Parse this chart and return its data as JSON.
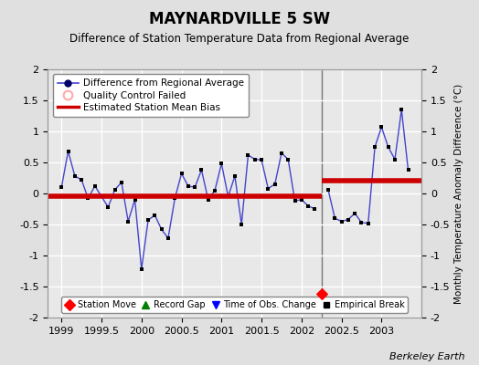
{
  "title": "MAYNARDVILLE 5 SW",
  "subtitle": "Difference of Station Temperature Data from Regional Average",
  "ylabel": "Monthly Temperature Anomaly Difference (°C)",
  "credit": "Berkeley Earth",
  "xlim": [
    1998.83,
    2003.5
  ],
  "ylim": [
    -2.0,
    2.0
  ],
  "xticks": [
    1999,
    1999.5,
    2000,
    2000.5,
    2001,
    2001.5,
    2002,
    2002.5,
    2003
  ],
  "yticks": [
    -2,
    -1.5,
    -1,
    -0.5,
    0,
    0.5,
    1,
    1.5,
    2
  ],
  "background_color": "#e0e0e0",
  "plot_bg_color": "#e8e8e8",
  "grid_color": "#ffffff",
  "break_line_x": 2002.25,
  "station_move_x": 2002.25,
  "station_move_y": -1.62,
  "bias_before_y": -0.04,
  "bias_before_x0": 1998.83,
  "bias_before_x1": 2002.25,
  "bias_after_y": 0.2,
  "bias_after_x0": 2002.25,
  "bias_after_x1": 2003.5,
  "data_x": [
    1999.0,
    1999.083,
    1999.167,
    1999.25,
    1999.333,
    1999.417,
    1999.5,
    1999.583,
    1999.667,
    1999.75,
    1999.833,
    1999.917,
    2000.0,
    2000.083,
    2000.167,
    2000.25,
    2000.333,
    2000.417,
    2000.5,
    2000.583,
    2000.667,
    2000.75,
    2000.833,
    2000.917,
    2001.0,
    2001.083,
    2001.167,
    2001.25,
    2001.333,
    2001.417,
    2001.5,
    2001.583,
    2001.667,
    2001.75,
    2001.833,
    2001.917,
    2002.0,
    2002.083,
    2002.167,
    2002.333,
    2002.417,
    2002.5,
    2002.583,
    2002.667,
    2002.75,
    2002.833,
    2002.917,
    2003.0,
    2003.083,
    2003.167,
    2003.25,
    2003.333
  ],
  "data_y": [
    0.1,
    0.68,
    0.28,
    0.22,
    -0.08,
    0.12,
    -0.05,
    -0.22,
    0.06,
    0.18,
    -0.45,
    -0.1,
    -1.22,
    -0.43,
    -0.35,
    -0.58,
    -0.72,
    -0.08,
    0.32,
    0.12,
    0.1,
    0.38,
    -0.1,
    0.05,
    0.48,
    -0.05,
    0.28,
    -0.5,
    0.62,
    0.55,
    0.54,
    0.08,
    0.15,
    0.65,
    0.55,
    -0.12,
    -0.1,
    -0.2,
    -0.25,
    0.06,
    -0.4,
    -0.45,
    -0.42,
    -0.32,
    -0.47,
    -0.48,
    0.75,
    1.07,
    0.75,
    0.55,
    1.35,
    0.38
  ],
  "line_color": "#4444cc",
  "marker_color": "#000000",
  "bias_color": "#cc0000",
  "break_color": "#777777"
}
